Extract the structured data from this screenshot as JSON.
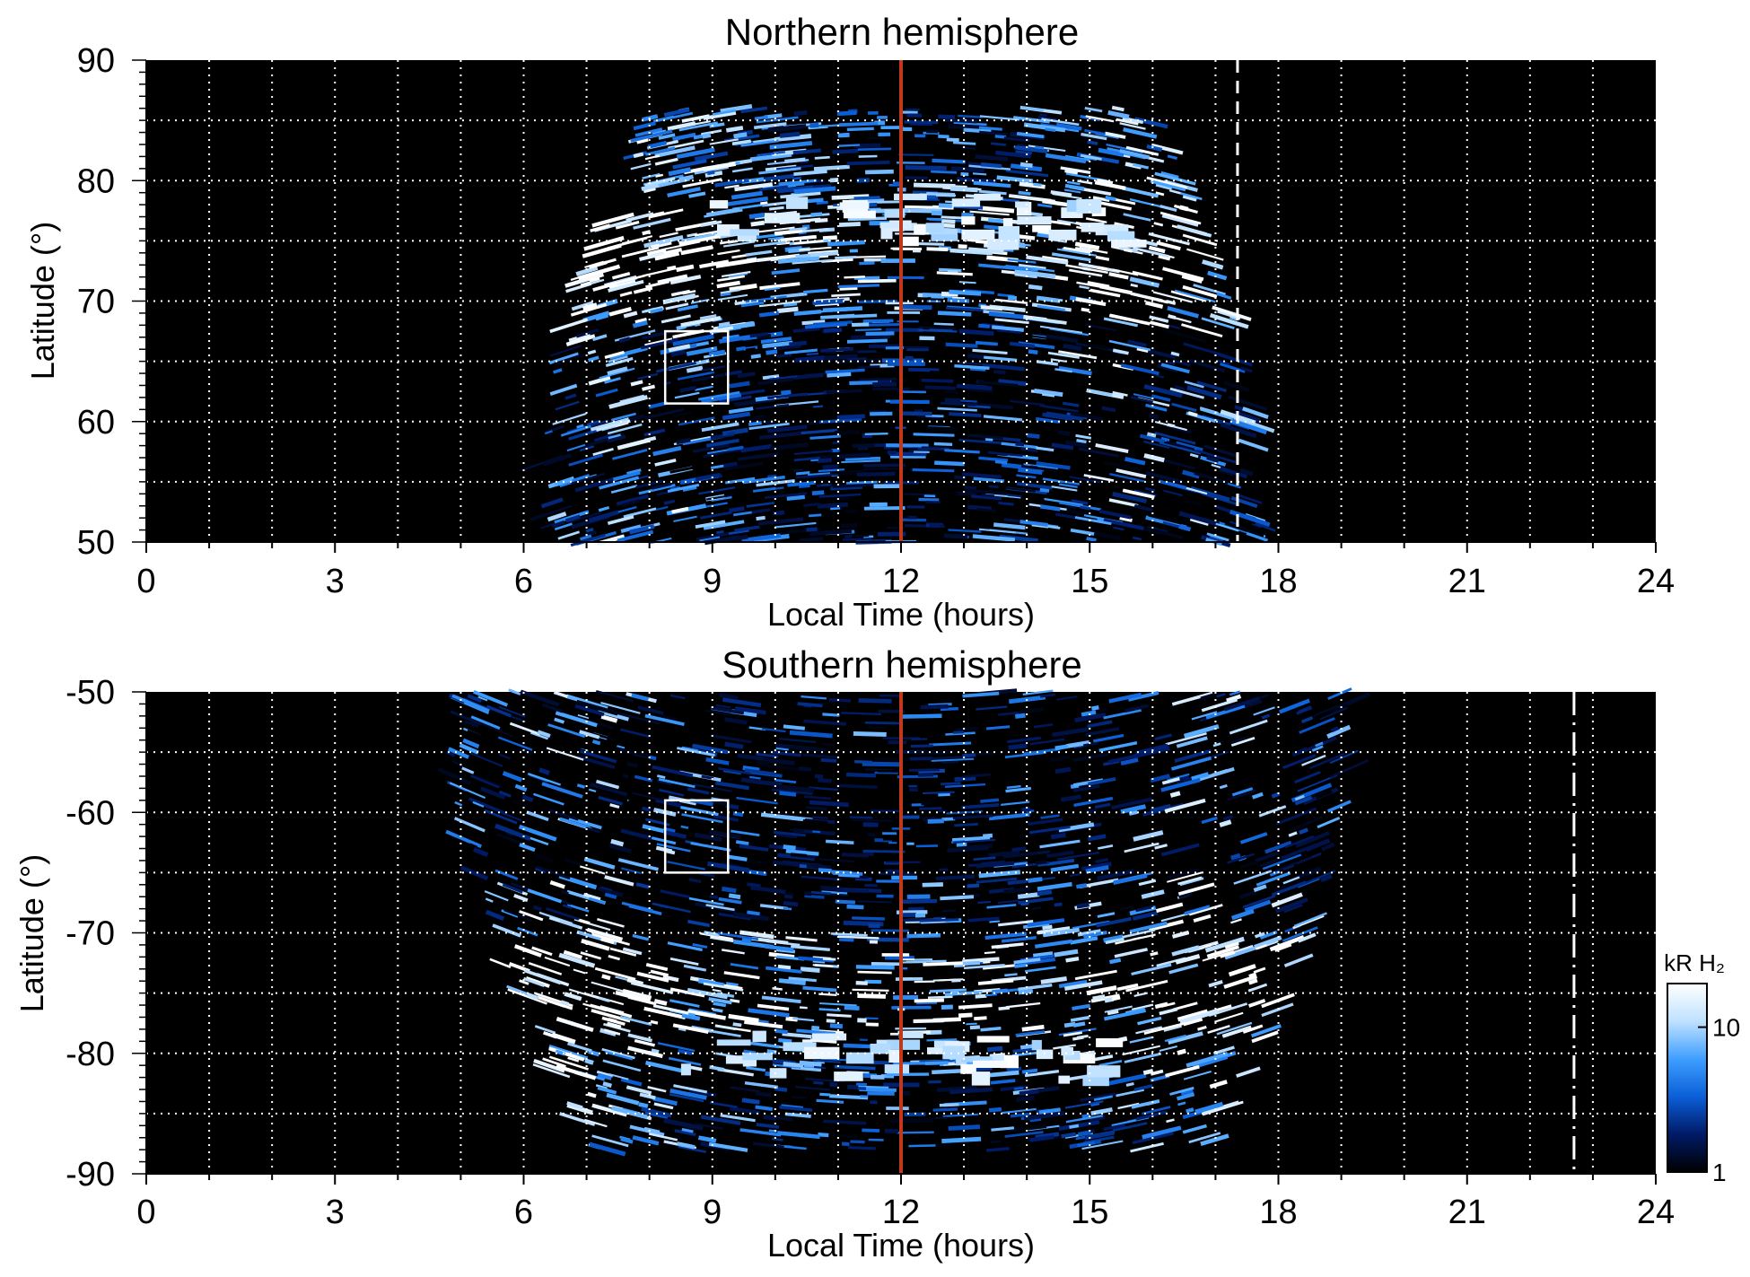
{
  "figure": {
    "colorbar": {
      "label": "kR H₂",
      "ticks": [
        {
          "label": "10",
          "value": 10
        },
        {
          "label": "1",
          "value": 1
        }
      ],
      "range": [
        1,
        20
      ],
      "scale": "log",
      "colors": [
        "#000000",
        "#001a66",
        "#0a5fd8",
        "#3f9fff",
        "#bfe1ff",
        "#ffffff"
      ]
    },
    "colors": {
      "background": "#000000",
      "noon_line": "#c0391b",
      "grid": "#ffffff",
      "emission_dark": "#0a2f9a",
      "emission_mid": "#1e74ea",
      "emission_light": "#8cc8ff"
    }
  },
  "chart_data": [
    {
      "type": "heatmap",
      "title": "Northern hemisphere",
      "xlabel": "Local Time (hours)",
      "ylabel": "Latitude (°)",
      "xlim": [
        0,
        24
      ],
      "ylim": [
        50,
        90
      ],
      "xticks": [
        0,
        3,
        6,
        9,
        12,
        15,
        18,
        21,
        24
      ],
      "yticks": [
        50,
        60,
        70,
        80,
        90
      ],
      "grid": true,
      "grid_x_step": 1,
      "grid_y_step": 5,
      "coverage": {
        "lt_min": 6.5,
        "lt_max": 18.1,
        "lat_min": 50,
        "lat_max": 86
      },
      "auroral_oval": {
        "lat_center": 74,
        "lat_bright_noon": 77,
        "lt_dawn": 8.0,
        "lt_dusk": 15.8
      },
      "reference_lines": [
        {
          "value": 12,
          "style": "solid",
          "color": "#c0391b"
        },
        {
          "value": 17.35,
          "style": "dashed",
          "color": "#ffffff"
        }
      ],
      "box": {
        "x0": 8.25,
        "x1": 9.25,
        "y0": 61.5,
        "y1": 67.5
      }
    },
    {
      "type": "heatmap",
      "title": "Southern hemisphere",
      "xlabel": "Local Time (hours)",
      "ylabel": "Latitude (°)",
      "xlim": [
        0,
        24
      ],
      "ylim": [
        -90,
        -50
      ],
      "xticks": [
        0,
        3,
        6,
        9,
        12,
        15,
        18,
        21,
        24
      ],
      "yticks": [
        -50,
        -60,
        -70,
        -80,
        -90
      ],
      "grid": true,
      "grid_x_step": 1,
      "grid_y_step": 5,
      "coverage": {
        "lt_min": 5.0,
        "lt_max": 19.4,
        "lat_min": -88,
        "lat_max": -50
      },
      "auroral_oval": {
        "lat_center": -75,
        "lat_bright_noon": -80,
        "lt_dawn": 7.0,
        "lt_dusk": 17.0
      },
      "reference_lines": [
        {
          "value": 12,
          "style": "solid",
          "color": "#c0391b"
        },
        {
          "value": 22.7,
          "style": "dash-dot",
          "color": "#ffffff"
        }
      ],
      "box": {
        "x0": 8.25,
        "x1": 9.25,
        "y0": -65,
        "y1": -59
      }
    }
  ]
}
